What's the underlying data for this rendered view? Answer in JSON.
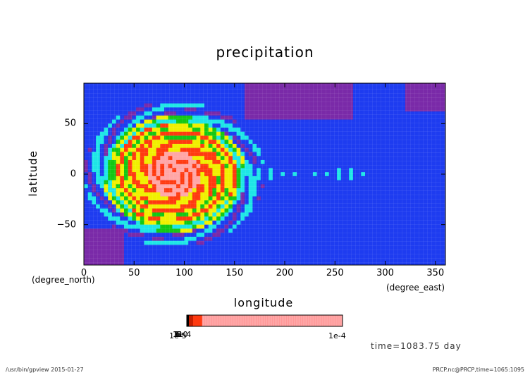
{
  "chart_data": {
    "type": "heatmap",
    "title": "precipitation",
    "xlabel": "longitude",
    "ylabel": "latitude",
    "x_unit": "(degree_east)",
    "y_unit": "(degree_north)",
    "xlim": [
      0,
      360
    ],
    "ylim": [
      -90,
      90
    ],
    "x_ticks": [
      0,
      50,
      100,
      150,
      200,
      250,
      300,
      350
    ],
    "y_ticks": [
      50,
      0,
      -50
    ],
    "x_tick_labels": [
      "0",
      "50",
      "100",
      "150",
      "200",
      "250",
      "300",
      "350"
    ],
    "y_tick_labels": [
      "50",
      "0",
      "−50"
    ],
    "colorbar": {
      "min_label": "1e-5",
      "max_label": "1e-4",
      "overlapping_labels": [
        "1",
        "1e-4",
        "5",
        "6",
        "8",
        "10"
      ],
      "colors": [
        "#000000",
        "#c81e00",
        "#ff3a10",
        "#ffa6a6"
      ]
    },
    "palette": {
      "lowest": "#7a2aa8",
      "low": "#1e3cf0",
      "mid_low": "#1ee6e6",
      "mid": "#14c814",
      "mid_high": "#f0f000",
      "high": "#ff3a10",
      "highest": "#ffa6a6"
    },
    "features": [
      {
        "name": "intense ring",
        "center_lon": 90,
        "center_lat": 0,
        "note": "maximum near equator 80-110 E"
      },
      {
        "name": "equatorial streaks",
        "lon_range": [
          160,
          280
        ],
        "lat": 0
      }
    ]
  },
  "annotations": {
    "time": "time=1083.75 day",
    "footer_left": "/usr/bin/gpview  2015-01-27",
    "footer_right": "PRCP.nc@PRCP,time=1065:1095"
  }
}
